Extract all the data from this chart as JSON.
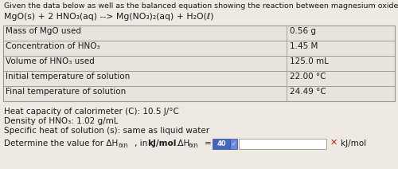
{
  "title_line": "Given the data below as well as the balanced equation showing the reaction between magnesium oxide and nitric acid:",
  "equation": "MgO(s) + 2 HNO₃(aq) --> Mg(NO₃)₂(aq) + H₂O(ℓ)",
  "table_rows": [
    [
      "Mass of MgO used",
      "0.56 g"
    ],
    [
      "Concentration of HNO₃",
      "1.45 M"
    ],
    [
      "Volume of HNO₃ used",
      "125.0 mL"
    ],
    [
      "Initial temperature of solution",
      "22.00 °C"
    ],
    [
      "Final temperature of solution",
      "24.49 °C"
    ]
  ],
  "note1": "Heat capacity of calorimeter (C): 10.5 J/°C",
  "note2": "Density of HNO₃: 1.02 g/mL",
  "note3": "Specific heat of solution (s): same as liquid water",
  "bottom_label": "Determine the value for ΔH",
  "bottom_label2": "rxn",
  "bottom_label3": ", in ",
  "bottom_bold": "kJ/mol",
  "bottom_label4": ".ΔH",
  "bottom_label5": "rxn",
  "bottom_eq": "=",
  "bottom_units": "kJ/mol",
  "bg_color": "#eeeae3",
  "table_bg": "#e8e4dd",
  "border_color": "#999990",
  "text_color": "#1a1a1a",
  "input_box_color": "#ffffff",
  "x_button_color": "#cc2222",
  "spin_color": "#4466bb",
  "font_size_title": 6.8,
  "font_size_eq": 7.8,
  "font_size_table": 7.5,
  "font_size_notes": 7.5,
  "font_size_bottom": 7.5
}
